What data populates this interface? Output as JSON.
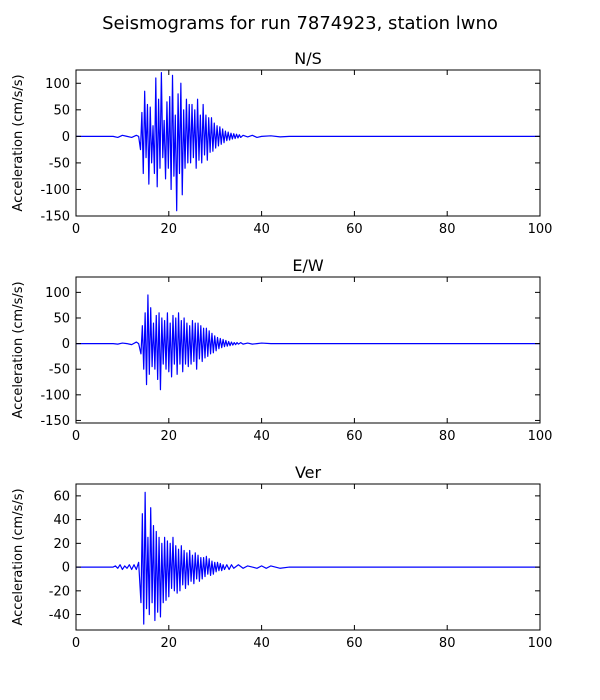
{
  "figure": {
    "title": "Seismograms for run 7874923, station lwno"
  },
  "colors": {
    "trace": "#0000ff",
    "axes": "#000000",
    "background": "#ffffff"
  },
  "chart_data": [
    {
      "type": "line",
      "title": "N/S",
      "xlabel": "",
      "ylabel": "Acceleration (cm/s/s)",
      "xlim": [
        0,
        100
      ],
      "ylim": [
        -150,
        125
      ],
      "xticks": [
        0,
        20,
        40,
        60,
        80,
        100
      ],
      "yticks": [
        -150,
        -100,
        -50,
        0,
        50,
        100
      ],
      "grid": false,
      "series": [
        {
          "x": [
            0,
            8,
            9,
            10,
            11,
            12,
            13,
            13.5,
            13.9,
            14.2,
            14.5,
            14.8,
            15.1,
            15.4,
            15.7,
            16.0,
            16.3,
            16.6,
            16.9,
            17.2,
            17.5,
            17.8,
            18.1,
            18.4,
            18.7,
            19.0,
            19.3,
            19.6,
            19.9,
            20.2,
            20.5,
            20.8,
            21.1,
            21.4,
            21.7,
            22.0,
            22.3,
            22.6,
            22.9,
            23.2,
            23.5,
            23.8,
            24.1,
            24.4,
            24.7,
            25.0,
            25.3,
            25.6,
            25.9,
            26.2,
            26.5,
            26.8,
            27.1,
            27.4,
            27.7,
            28.0,
            28.3,
            28.6,
            28.9,
            29.2,
            29.5,
            29.8,
            30.1,
            30.4,
            30.7,
            31.0,
            31.3,
            31.6,
            31.9,
            32.2,
            32.5,
            32.8,
            33.1,
            33.4,
            33.7,
            34.0,
            34.3,
            34.6,
            34.9,
            35.2,
            35.5,
            36,
            37,
            38,
            39,
            40,
            42,
            44,
            46,
            50,
            60,
            70,
            80,
            90,
            100
          ],
          "y": [
            0,
            0,
            -2,
            2,
            0,
            -2,
            2,
            0,
            -25,
            45,
            -70,
            85,
            -40,
            60,
            -90,
            55,
            -50,
            20,
            -70,
            110,
            -95,
            70,
            -60,
            120,
            -40,
            30,
            -80,
            65,
            -60,
            75,
            -100,
            115,
            -75,
            40,
            -140,
            80,
            -70,
            100,
            -110,
            50,
            -60,
            70,
            -50,
            60,
            -50,
            60,
            -40,
            50,
            -60,
            70,
            -45,
            40,
            -50,
            60,
            -35,
            40,
            -45,
            35,
            -30,
            35,
            -28,
            25,
            -22,
            20,
            -18,
            18,
            -15,
            14,
            -12,
            10,
            -8,
            8,
            -7,
            6,
            -5,
            5,
            -4,
            4,
            -3,
            3,
            -2,
            2,
            -1,
            2,
            -2,
            0,
            1,
            -1,
            0,
            0,
            0,
            0,
            0,
            0,
            0
          ]
        }
      ]
    },
    {
      "type": "line",
      "title": "E/W",
      "xlabel": "",
      "ylabel": "Acceleration (cm/s/s)",
      "xlim": [
        0,
        100
      ],
      "ylim": [
        -155,
        130
      ],
      "xticks": [
        0,
        20,
        40,
        60,
        80,
        100
      ],
      "yticks": [
        -150,
        -100,
        -50,
        0,
        50,
        100
      ],
      "grid": false,
      "series": [
        {
          "x": [
            0,
            8,
            9,
            10,
            11,
            12,
            13,
            13.5,
            14.0,
            14.3,
            14.6,
            14.9,
            15.2,
            15.5,
            15.8,
            16.1,
            16.4,
            16.7,
            17.0,
            17.3,
            17.6,
            17.9,
            18.2,
            18.5,
            18.8,
            19.1,
            19.4,
            19.7,
            20.0,
            20.3,
            20.6,
            20.9,
            21.2,
            21.5,
            21.8,
            22.1,
            22.4,
            22.7,
            23.0,
            23.3,
            23.6,
            23.9,
            24.2,
            24.5,
            24.8,
            25.1,
            25.4,
            25.7,
            26.0,
            26.3,
            26.6,
            26.9,
            27.2,
            27.5,
            27.8,
            28.1,
            28.4,
            28.7,
            29.0,
            29.3,
            29.6,
            29.9,
            30.2,
            30.5,
            30.8,
            31.1,
            31.4,
            31.7,
            32.0,
            32.3,
            32.6,
            32.9,
            33.2,
            33.5,
            33.8,
            34.1,
            34.4,
            34.7,
            35.0,
            35.5,
            36,
            37,
            38,
            39,
            40,
            42,
            44,
            46,
            50,
            60,
            70,
            80,
            90,
            100
          ],
          "y": [
            0,
            0,
            -1,
            1,
            0,
            -2,
            3,
            0,
            -20,
            35,
            -50,
            60,
            -80,
            95,
            -60,
            70,
            -45,
            40,
            -50,
            55,
            -70,
            60,
            -90,
            50,
            -40,
            45,
            -50,
            60,
            -55,
            40,
            -65,
            55,
            -40,
            50,
            -60,
            60,
            -40,
            45,
            -55,
            50,
            -40,
            40,
            -45,
            35,
            -40,
            45,
            -35,
            40,
            -50,
            40,
            -30,
            35,
            -35,
            30,
            -28,
            30,
            -25,
            25,
            -20,
            20,
            -18,
            15,
            -14,
            12,
            -10,
            10,
            -8,
            8,
            -6,
            6,
            -5,
            4,
            -4,
            3,
            -3,
            2,
            -2,
            2,
            -1,
            2,
            -1,
            1,
            -1,
            0,
            1,
            0,
            0,
            0,
            0,
            0,
            0,
            0,
            0,
            0
          ]
        }
      ]
    },
    {
      "type": "line",
      "title": "Ver",
      "xlabel": "",
      "ylabel": "Acceleration (cm/s/s)",
      "xlim": [
        0,
        100
      ],
      "ylim": [
        -53,
        70
      ],
      "xticks": [
        0,
        20,
        40,
        60,
        80,
        100
      ],
      "yticks": [
        -40,
        -20,
        0,
        20,
        40,
        60
      ],
      "grid": false,
      "series": [
        {
          "x": [
            0,
            8,
            8.5,
            9,
            9.5,
            10,
            10.5,
            11,
            11.5,
            12,
            12.5,
            13,
            13.5,
            14.0,
            14.3,
            14.6,
            14.9,
            15.2,
            15.5,
            15.8,
            16.1,
            16.4,
            16.7,
            17.0,
            17.3,
            17.6,
            17.9,
            18.2,
            18.5,
            18.8,
            19.1,
            19.4,
            19.7,
            20.0,
            20.3,
            20.6,
            20.9,
            21.2,
            21.5,
            21.8,
            22.1,
            22.4,
            22.7,
            23.0,
            23.3,
            23.6,
            23.9,
            24.2,
            24.5,
            24.8,
            25.1,
            25.4,
            25.7,
            26.0,
            26.3,
            26.6,
            26.9,
            27.2,
            27.5,
            27.8,
            28.1,
            28.4,
            28.7,
            29.0,
            29.3,
            29.6,
            29.9,
            30.2,
            30.5,
            30.8,
            31.1,
            31.4,
            31.7,
            32.0,
            32.5,
            33,
            33.5,
            34,
            35,
            36,
            37,
            38,
            39,
            40,
            41,
            42,
            44,
            46,
            50,
            60,
            70,
            80,
            90,
            100
          ],
          "y": [
            0,
            0,
            1,
            -1,
            2,
            -2,
            1,
            -1,
            2,
            -2,
            2,
            -2,
            4,
            -30,
            45,
            -48,
            63,
            -35,
            25,
            -40,
            50,
            -30,
            35,
            -45,
            30,
            -38,
            25,
            -42,
            20,
            -30,
            25,
            -28,
            22,
            -25,
            20,
            -18,
            25,
            -20,
            18,
            -22,
            15,
            -20,
            18,
            -15,
            14,
            -18,
            12,
            -15,
            14,
            -12,
            10,
            -14,
            12,
            -10,
            10,
            -12,
            8,
            -10,
            8,
            -8,
            9,
            -6,
            7,
            -7,
            5,
            -6,
            4,
            -4,
            4,
            -3,
            3,
            -3,
            2,
            -2,
            2,
            -2,
            2,
            -1,
            2,
            -1,
            1,
            0,
            -1,
            1,
            -1,
            1,
            -1,
            0,
            0,
            0,
            0,
            0,
            0,
            0
          ]
        }
      ]
    }
  ]
}
